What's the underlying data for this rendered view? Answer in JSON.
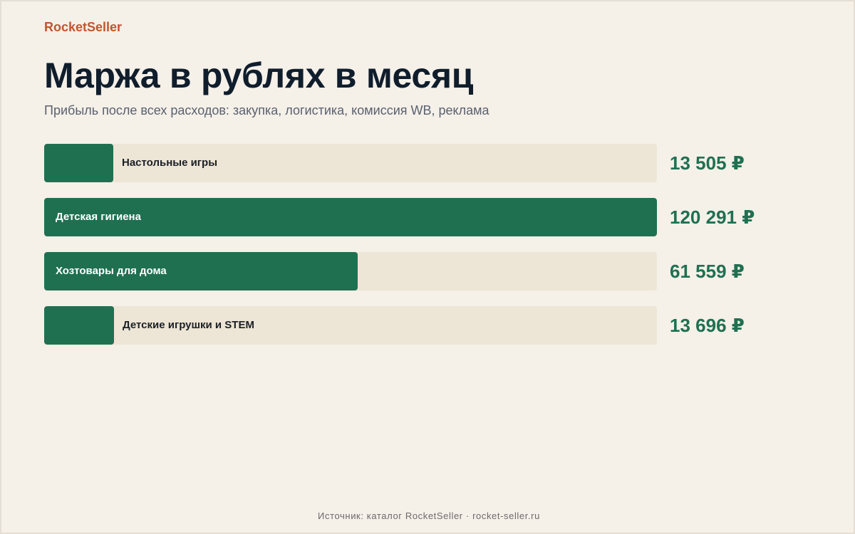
{
  "brand": "RocketSeller",
  "footer": "Источник: каталог RocketSeller · rocket-seller.ru",
  "colors": {
    "background": "#f5f0e8",
    "brand": "#c0562f",
    "bar_fill": "#1f7051",
    "bar_track": "#ede5d5",
    "title": "#0f1d2c",
    "value": "#1f7051"
  },
  "chart_data": {
    "type": "bar",
    "orientation": "horizontal",
    "title": "Маржа в рублях в месяц",
    "subtitle": "Прибыль после всех расходов: закупка, логистика, комиссия WB, реклама",
    "categories": [
      "Настольные игры",
      "Детская гигиена",
      "Хозтовары для дома",
      "Детские игрушки и STEM"
    ],
    "values": [
      13505,
      120291,
      61559,
      13696
    ],
    "value_labels": [
      "13 505 ₽",
      "120 291 ₽",
      "61 559 ₽",
      "13 696 ₽"
    ],
    "unit": "₽",
    "xlim": [
      0,
      120291
    ],
    "grid": false,
    "legend": "none"
  }
}
